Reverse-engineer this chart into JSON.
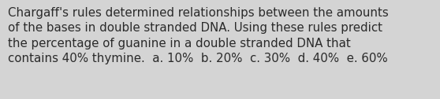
{
  "background_color": "#d4d4d4",
  "text_color": "#2a2a2a",
  "line1": "Chargaff's rules determined relationships between the amounts",
  "line2": "of the bases in double stranded DNA. Using these rules predict",
  "line3": "the percentage of guanine in a double stranded DNA that",
  "line4": "contains 40% thymine.  a. 10%  b. 20%  c. 30%  d. 40%  e. 60%",
  "font_size": 10.8,
  "figsize": [
    5.58,
    1.26
  ],
  "dpi": 100
}
